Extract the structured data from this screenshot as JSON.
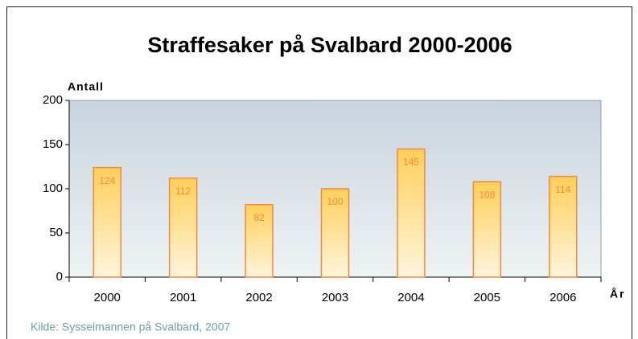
{
  "chart_data": {
    "type": "bar",
    "title": "Straffesaker på Svalbard 2000-2006",
    "y_label": "Antall",
    "x_label": "År",
    "source": "Kilde: Sysselmannen på Svalbard, 2007",
    "categories": [
      "2000",
      "2001",
      "2002",
      "2003",
      "2004",
      "2005",
      "2006"
    ],
    "values": [
      124,
      112,
      82,
      100,
      145,
      108,
      114
    ],
    "color": "#f28a3c",
    "ylim": [
      0,
      200
    ],
    "yticks": [
      0,
      50,
      100,
      150,
      200
    ],
    "grid": false
  }
}
